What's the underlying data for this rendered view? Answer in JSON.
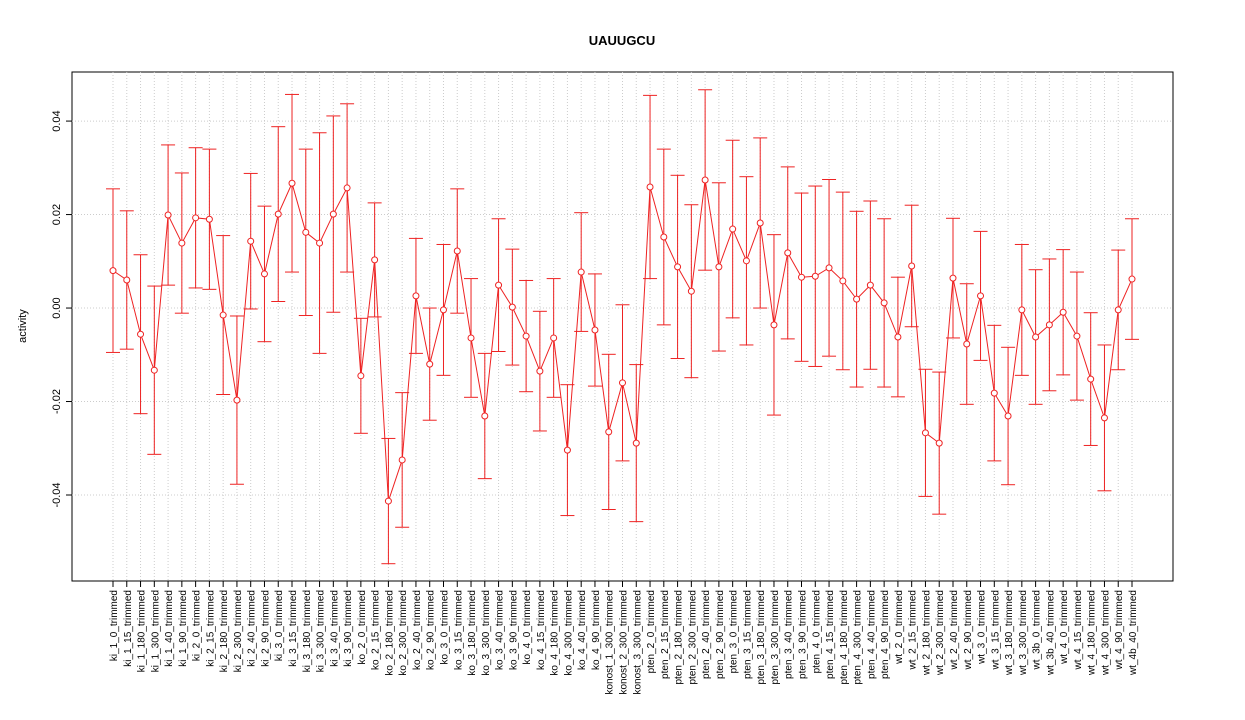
{
  "chart_data": {
    "type": "line",
    "title": "UAUUGCU",
    "y_label": "activity",
    "categories": [
      "ki_1_0_trimmed",
      "ki_1_15_trimmed",
      "ki_1_180_trimmed",
      "ki_1_300_trimmed",
      "ki_1_40_trimmed",
      "ki_1_90_trimmed",
      "ki_2_0_trimmed",
      "ki_2_15_trimmed",
      "ki_2_180_trimmed",
      "ki_2_300_trimmed",
      "ki_2_40_trimmed",
      "ki_2_90_trimmed",
      "ki_3_0_trimmed",
      "ki_3_15_trimmed",
      "ki_3_180_trimmed",
      "ki_3_300_trimmed",
      "ki_3_40_trimmed",
      "ki_3_90_trimmed",
      "ko_2_0_trimmed",
      "ko_2_15_trimmed",
      "ko_2_180_trimmed",
      "ko_2_300_trimmed",
      "ko_2_40_trimmed",
      "ko_2_90_trimmed",
      "ko_3_0_trimmed",
      "ko_3_15_trimmed",
      "ko_3_180_trimmed",
      "ko_3_300_trimmed",
      "ko_3_40_trimmed",
      "ko_3_90_trimmed",
      "ko_4_0_trimmed",
      "ko_4_15_trimmed",
      "ko_4_180_trimmed",
      "ko_4_300_trimmed",
      "ko_4_40_trimmed",
      "ko_4_90_trimmed",
      "konost_1_300_trimmed",
      "konost_2_300_trimmed",
      "konost_3_300_trimmed",
      "pten_2_0_trimmed",
      "pten_2_15_trimmed",
      "pten_2_180_trimmed",
      "pten_2_300_trimmed",
      "pten_2_40_trimmed",
      "pten_2_90_trimmed",
      "pten_3_0_trimmed",
      "pten_3_15_trimmed",
      "pten_3_180_trimmed",
      "pten_3_300_trimmed",
      "pten_3_40_trimmed",
      "pten_3_90_trimmed",
      "pten_4_0_trimmed",
      "pten_4_15_trimmed",
      "pten_4_180_trimmed",
      "pten_4_300_trimmed",
      "pten_4_40_trimmed",
      "pten_4_90_trimmed",
      "wt_2_0_trimmed",
      "wt_2_15_trimmed",
      "wt_2_180_trimmed",
      "wt_2_300_trimmed",
      "wt_2_40_trimmed",
      "wt_2_90_trimmed",
      "wt_3_0_trimmed",
      "wt_3_15_trimmed",
      "wt_3_180_trimmed",
      "wt_3_300_trimmed",
      "wt_3b_0_trimmed",
      "wt_3b_40_trimmed",
      "wt_4_0_trimmed",
      "wt_4_15_trimmed",
      "wt_4_180_trimmed",
      "wt_4_300_trimmed",
      "wt_4_90_trimmed",
      "wt_4b_40_trimmed"
    ],
    "series": [
      {
        "color": "#ee2222",
        "values": [
          0.008,
          0.006,
          -0.0056,
          -0.0133,
          0.0199,
          0.0139,
          0.0193,
          0.019,
          -0.0015,
          -0.0197,
          0.0143,
          0.0073,
          0.0201,
          0.0267,
          0.0162,
          0.0139,
          0.0201,
          0.0257,
          -0.0145,
          0.0103,
          -0.0413,
          -0.0325,
          0.0026,
          -0.012,
          -0.0004,
          0.0122,
          -0.0064,
          -0.0231,
          0.0049,
          0.0002,
          -0.006,
          -0.0135,
          -0.0064,
          -0.0304,
          0.0077,
          -0.0047,
          -0.0265,
          -0.016,
          -0.0289,
          0.0259,
          0.0152,
          0.0088,
          0.0036,
          0.0274,
          0.0088,
          0.0169,
          0.0101,
          0.0182,
          -0.0036,
          0.0118,
          0.0066,
          0.0068,
          0.0086,
          0.0058,
          0.0019,
          0.0049,
          0.0011,
          -0.0062,
          0.009,
          -0.0267,
          -0.0289,
          0.0064,
          -0.0077,
          0.0026,
          -0.0182,
          -0.0231,
          -0.0004,
          -0.0062,
          -0.0036,
          -0.0009,
          -0.006,
          -0.0152,
          -0.0235,
          -0.0004,
          0.0062
        ],
        "errors": [
          0.0175,
          0.0148,
          0.017,
          0.018,
          0.015,
          0.015,
          0.015,
          0.015,
          0.017,
          0.018,
          0.0145,
          0.0145,
          0.0187,
          0.019,
          0.0178,
          0.0236,
          0.021,
          0.018,
          0.0123,
          0.0122,
          0.0134,
          0.0144,
          0.0123,
          0.012,
          0.014,
          0.0133,
          0.0127,
          0.0134,
          0.0142,
          0.0124,
          0.0119,
          0.0128,
          0.0127,
          0.014,
          0.0127,
          0.012,
          0.0166,
          0.0167,
          0.0168,
          0.0196,
          0.0188,
          0.0196,
          0.0185,
          0.0193,
          0.018,
          0.019,
          0.018,
          0.0182,
          0.0193,
          0.0184,
          0.018,
          0.0193,
          0.0189,
          0.019,
          0.0188,
          0.018,
          0.018,
          0.0128,
          0.013,
          0.0136,
          0.0152,
          0.0128,
          0.0129,
          0.0138,
          0.0145,
          0.0147,
          0.014,
          0.0144,
          0.0141,
          0.0134,
          0.0137,
          0.0142,
          0.0156,
          0.0128,
          0.0129
        ]
      }
    ],
    "ylim": [
      -0.0584,
      0.0505
    ],
    "yticks": [
      -0.04,
      -0.02,
      {
        "value": 0,
        "label": "0.00"
      },
      0.02,
      0.04
    ],
    "grid": true
  }
}
